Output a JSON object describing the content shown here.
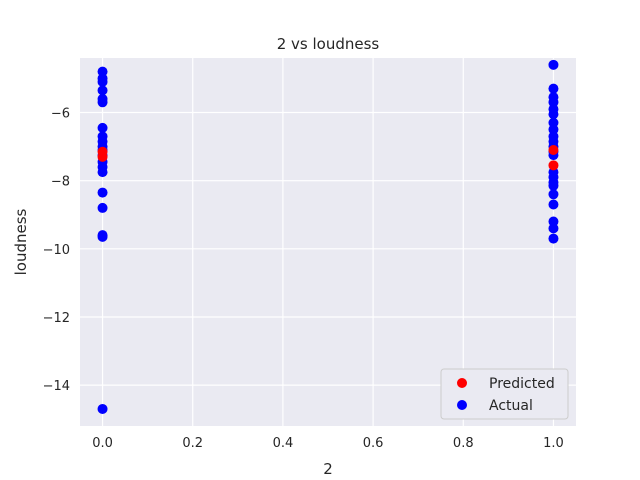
{
  "chart_data": {
    "type": "scatter",
    "title": "2 vs loudness",
    "xlabel": "2",
    "ylabel": "loudness",
    "xlim": [
      -0.05,
      1.05
    ],
    "ylim": [
      -15.2,
      -4.4
    ],
    "xticks": [
      0.0,
      0.2,
      0.4,
      0.6,
      0.8,
      1.0
    ],
    "xtick_labels": [
      "0.0",
      "0.2",
      "0.4",
      "0.6",
      "0.8",
      "1.0"
    ],
    "yticks": [
      -14,
      -12,
      -10,
      -8,
      -6
    ],
    "ytick_labels": [
      "−14",
      "−12",
      "−10",
      "−8",
      "−6"
    ],
    "grid": true,
    "background": "#eaeaf2",
    "legend": {
      "placement": "lower-right",
      "entries": [
        "Predicted",
        "Actual"
      ]
    },
    "series": [
      {
        "name": "Predicted",
        "color": "#ff0000",
        "points": [
          {
            "x": 0,
            "y": -7.15
          },
          {
            "x": 0,
            "y": -7.3
          },
          {
            "x": 1,
            "y": -7.55
          },
          {
            "x": 1,
            "y": -7.1
          }
        ]
      },
      {
        "name": "Actual",
        "color": "#0000ff",
        "points": [
          {
            "x": 0,
            "y": -4.8
          },
          {
            "x": 0,
            "y": -5.0
          },
          {
            "x": 0,
            "y": -5.1
          },
          {
            "x": 0,
            "y": -5.35
          },
          {
            "x": 0,
            "y": -5.6
          },
          {
            "x": 0,
            "y": -5.7
          },
          {
            "x": 0,
            "y": -6.45
          },
          {
            "x": 0,
            "y": -6.7
          },
          {
            "x": 0,
            "y": -6.85
          },
          {
            "x": 0,
            "y": -7.0
          },
          {
            "x": 0,
            "y": -7.1
          },
          {
            "x": 0,
            "y": -7.25
          },
          {
            "x": 0,
            "y": -7.45
          },
          {
            "x": 0,
            "y": -7.6
          },
          {
            "x": 0,
            "y": -7.75
          },
          {
            "x": 0,
            "y": -8.35
          },
          {
            "x": 0,
            "y": -8.8
          },
          {
            "x": 0,
            "y": -9.6
          },
          {
            "x": 0,
            "y": -9.65
          },
          {
            "x": 0,
            "y": -14.7
          },
          {
            "x": 1,
            "y": -4.6
          },
          {
            "x": 1,
            "y": -5.3
          },
          {
            "x": 1,
            "y": -5.55
          },
          {
            "x": 1,
            "y": -5.7
          },
          {
            "x": 1,
            "y": -5.9
          },
          {
            "x": 1,
            "y": -6.05
          },
          {
            "x": 1,
            "y": -6.3
          },
          {
            "x": 1,
            "y": -6.5
          },
          {
            "x": 1,
            "y": -6.7
          },
          {
            "x": 1,
            "y": -6.85
          },
          {
            "x": 1,
            "y": -7.0
          },
          {
            "x": 1,
            "y": -7.15
          },
          {
            "x": 1,
            "y": -7.25
          },
          {
            "x": 1,
            "y": -7.75
          },
          {
            "x": 1,
            "y": -7.9
          },
          {
            "x": 1,
            "y": -8.05
          },
          {
            "x": 1,
            "y": -8.15
          },
          {
            "x": 1,
            "y": -8.4
          },
          {
            "x": 1,
            "y": -8.7
          },
          {
            "x": 1,
            "y": -9.2
          },
          {
            "x": 1,
            "y": -9.4
          },
          {
            "x": 1,
            "y": -9.7
          }
        ]
      }
    ]
  }
}
